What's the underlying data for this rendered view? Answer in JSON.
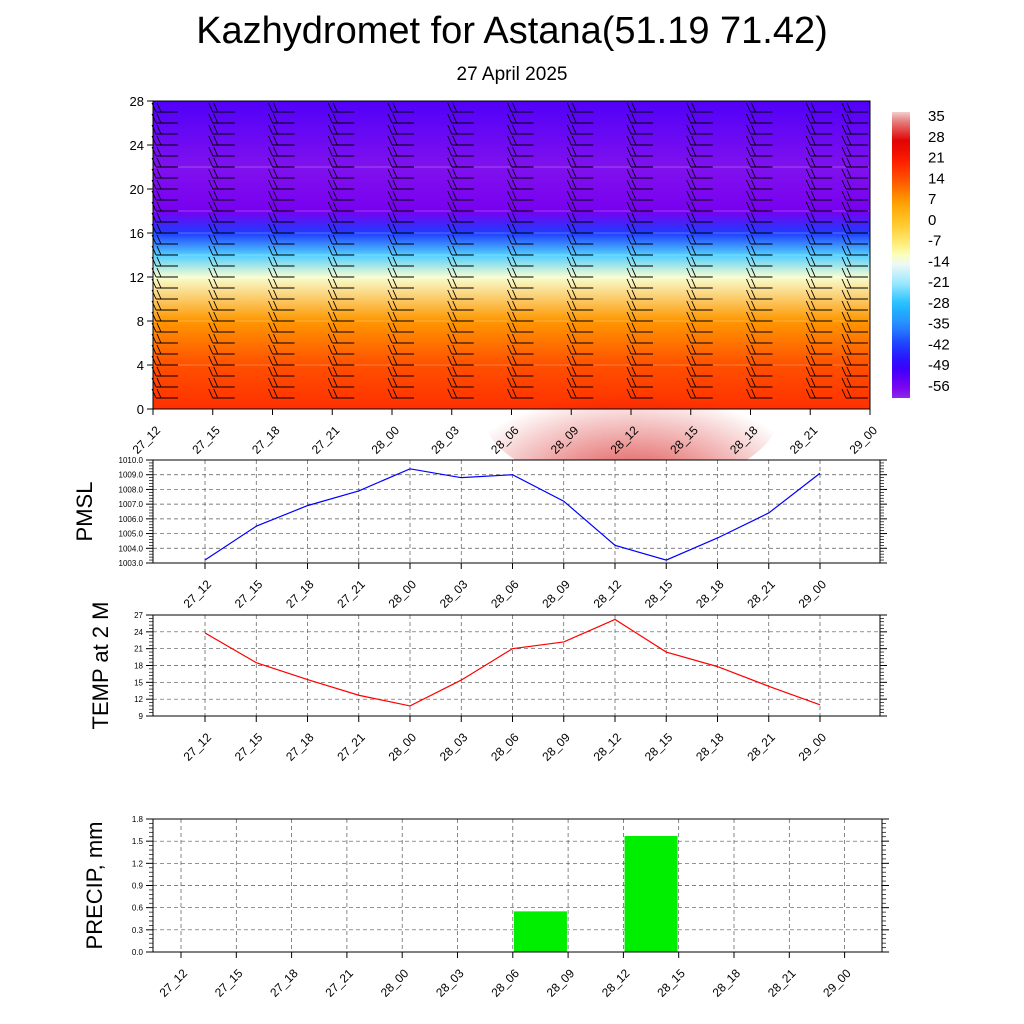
{
  "header": {
    "title": "Kazhydromet for Astana(51.19 71.42)",
    "subtitle": "27 April 2025"
  },
  "time_labels": [
    "27_12",
    "27_15",
    "27_18",
    "27_21",
    "28_00",
    "28_03",
    "28_06",
    "28_09",
    "28_12",
    "28_15",
    "28_18",
    "28_21",
    "29_00"
  ],
  "chart_data": [
    {
      "type": "heatmap",
      "title": "",
      "ylabel": "",
      "yticks": [
        0,
        4,
        8,
        12,
        16,
        20,
        24,
        28
      ],
      "ylim": [
        0,
        28
      ],
      "categories": [
        "27_12",
        "27_15",
        "27_18",
        "27_21",
        "28_00",
        "28_03",
        "28_06",
        "28_09",
        "28_12",
        "28_15",
        "28_18",
        "28_21",
        "29_00"
      ],
      "colorbar_labels": [
        "35",
        "28",
        "21",
        "14",
        "7",
        "0",
        "-7",
        "-14",
        "-21",
        "-28",
        "-35",
        "-42",
        "-49",
        "-56"
      ],
      "colorbar_range": [
        -60,
        38
      ],
      "levels_temperature": [
        {
          "z": 0,
          "temp": [
            20,
            18,
            17,
            16,
            15,
            15,
            22,
            24,
            26,
            22,
            19,
            17,
            15
          ]
        },
        {
          "z": 4,
          "temp": [
            16,
            15,
            14,
            13,
            12,
            12,
            16,
            19,
            21,
            18,
            15,
            14,
            12
          ]
        },
        {
          "z": 8,
          "temp": [
            9,
            8,
            8,
            7,
            7,
            7,
            8,
            9,
            10,
            9,
            8,
            7,
            6
          ]
        },
        {
          "z": 12,
          "temp": [
            -12,
            -12,
            -12,
            -12,
            -12,
            -12,
            -12,
            -12,
            -12,
            -12,
            -12,
            -12,
            -12
          ]
        },
        {
          "z": 14,
          "temp": [
            -25,
            -25,
            -25,
            -25,
            -25,
            -25,
            -25,
            -25,
            -25,
            -25,
            -25,
            -25,
            -25
          ]
        },
        {
          "z": 16,
          "temp": [
            -42,
            -42,
            -42,
            -42,
            -42,
            -42,
            -42,
            -42,
            -42,
            -42,
            -42,
            -42,
            -42
          ]
        },
        {
          "z": 18,
          "temp": [
            -56,
            -56,
            -56,
            -56,
            -56,
            -56,
            -56,
            -56,
            -56,
            -56,
            -56,
            -56,
            -56
          ]
        },
        {
          "z": 22,
          "temp": [
            -57,
            -58,
            -58,
            -58,
            -59,
            -58,
            -58,
            -58,
            -58,
            -57,
            -57,
            -57,
            -57
          ]
        },
        {
          "z": 28,
          "temp": [
            -52,
            -52,
            -52,
            -52,
            -52,
            -52,
            -52,
            -52,
            -52,
            -52,
            -52,
            -52,
            -52
          ]
        }
      ],
      "wind_levels": [
        1,
        2,
        3,
        4,
        5,
        6,
        7,
        8,
        9,
        10,
        11,
        12,
        13,
        14,
        15,
        16,
        17,
        18,
        19,
        20,
        21,
        22,
        23,
        24,
        25,
        26,
        27
      ]
    },
    {
      "type": "line",
      "ylabel": "PMSL",
      "ylim": [
        1003.0,
        1010.0
      ],
      "yticks": [
        "1003.0",
        "1004.0",
        "1005.0",
        "1006.0",
        "1007.0",
        "1008.0",
        "1009.0",
        "1010.0"
      ],
      "categories": [
        "27_12",
        "27_15",
        "27_18",
        "27_21",
        "28_00",
        "28_03",
        "28_06",
        "28_09",
        "28_12",
        "28_15",
        "28_18",
        "28_21",
        "29_00"
      ],
      "values": [
        1003.2,
        1005.5,
        1006.9,
        1007.9,
        1009.4,
        1008.8,
        1009.0,
        1007.2,
        1004.2,
        1003.2,
        1004.7,
        1006.4,
        1009.1
      ],
      "color": "#0000ff"
    },
    {
      "type": "line",
      "ylabel": "TEMP at 2 M",
      "ylim": [
        9,
        27
      ],
      "yticks": [
        "9",
        "12",
        "15",
        "18",
        "21",
        "24",
        "27"
      ],
      "categories": [
        "27_12",
        "27_15",
        "27_18",
        "27_21",
        "28_00",
        "28_03",
        "28_06",
        "28_09",
        "28_12",
        "28_15",
        "28_18",
        "28_21",
        "29_00"
      ],
      "values": [
        23.8,
        18.5,
        15.5,
        12.7,
        10.8,
        15.4,
        21.0,
        22.2,
        26.2,
        20.4,
        17.8,
        14.3,
        11.0
      ],
      "color": "#ff0000"
    },
    {
      "type": "bar",
      "ylabel": "PRECIP, mm",
      "ylim": [
        0.0,
        1.8
      ],
      "yticks": [
        "0.0",
        "0.3",
        "0.6",
        "0.9",
        "1.2",
        "1.5",
        "1.8"
      ],
      "categories": [
        "27_12",
        "27_15",
        "27_18",
        "27_21",
        "28_00",
        "28_03",
        "28_06",
        "28_09",
        "28_12",
        "28_15",
        "28_18",
        "28_21",
        "29_00"
      ],
      "values": [
        0,
        0,
        0,
        0,
        0,
        0,
        0,
        0.55,
        0,
        1.57,
        0,
        0,
        0
      ],
      "color": "#00ee00"
    }
  ]
}
